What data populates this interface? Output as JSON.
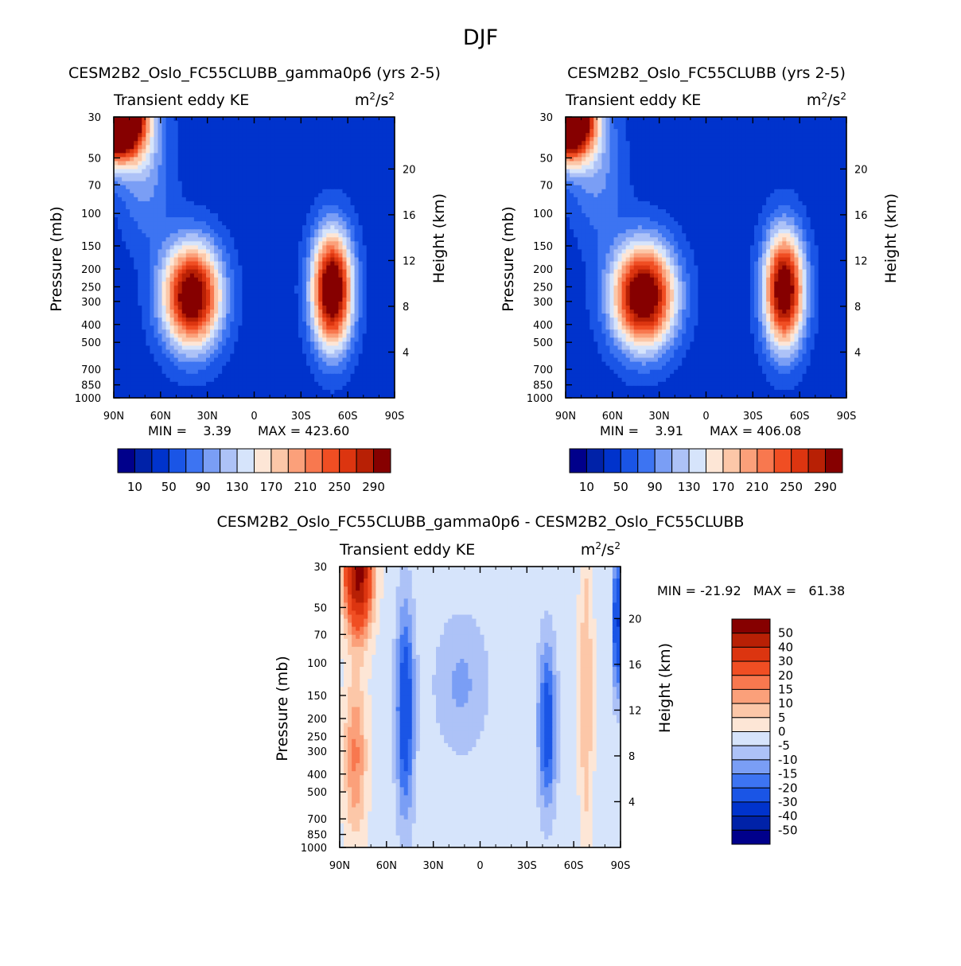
{
  "page_title": "DJF",
  "chart_data": [
    {
      "type": "heatmap",
      "title": "CESM2B2_Oslo_FC55CLUBB_gamma0p6 (yrs 2-5)",
      "subtitle_left": "Transient eddy KE",
      "units_base": "m",
      "units_exp": "2",
      "units_tail": "/s",
      "units_tail_exp": "2",
      "ylabel": "Pressure (mb)",
      "ylabel_right": "Height (km)",
      "x_ticks": [
        "90N",
        "60N",
        "30N",
        "0",
        "30S",
        "60S",
        "90S"
      ],
      "y_ticks": [
        "30",
        "50",
        "70",
        "100",
        "150",
        "200",
        "250",
        "300",
        "400",
        "500",
        "700",
        "850",
        "1000"
      ],
      "y_right_ticks": [
        "20",
        "16",
        "12",
        "8",
        "4"
      ],
      "min_text": "MIN =    3.39",
      "max_text": "MAX = 423.60",
      "colorbar_labels": [
        "10",
        "50",
        "90",
        "130",
        "170",
        "210",
        "250",
        "290"
      ],
      "levels": [
        10,
        30,
        50,
        70,
        90,
        110,
        130,
        150,
        170,
        190,
        210,
        230,
        250,
        270,
        290
      ],
      "blobs": [
        {
          "lat": 88,
          "lev": 30,
          "amp": 520,
          "slat": 12,
          "slev": 0.35
        },
        {
          "lat": 40,
          "lev": 280,
          "amp": 300,
          "slat": 13,
          "slev": 0.45
        },
        {
          "lat": -50,
          "lev": 260,
          "amp": 315,
          "slat": 9,
          "slev": 0.5
        },
        {
          "lat": 70,
          "lev": 60,
          "amp": 60,
          "slat": 12,
          "slev": 0.6
        }
      ],
      "background": 38
    },
    {
      "type": "heatmap",
      "title": "CESM2B2_Oslo_FC55CLUBB (yrs 2-5)",
      "subtitle_left": "Transient eddy KE",
      "units_base": "m",
      "units_exp": "2",
      "units_tail": "/s",
      "units_tail_exp": "2",
      "ylabel": "Pressure (mb)",
      "ylabel_right": "Height (km)",
      "x_ticks": [
        "90N",
        "60N",
        "30N",
        "0",
        "30S",
        "60S",
        "90S"
      ],
      "y_ticks": [
        "30",
        "50",
        "70",
        "100",
        "150",
        "200",
        "250",
        "300",
        "400",
        "500",
        "700",
        "850",
        "1000"
      ],
      "y_right_ticks": [
        "20",
        "16",
        "12",
        "8",
        "4"
      ],
      "min_text": "MIN =    3.91",
      "max_text": "MAX = 406.08",
      "colorbar_labels": [
        "10",
        "50",
        "90",
        "130",
        "170",
        "210",
        "250",
        "290"
      ],
      "levels": [
        10,
        30,
        50,
        70,
        90,
        110,
        130,
        150,
        170,
        190,
        210,
        230,
        250,
        270,
        290
      ],
      "blobs": [
        {
          "lat": 88,
          "lev": 30,
          "amp": 480,
          "slat": 11,
          "slev": 0.35
        },
        {
          "lat": 40,
          "lev": 280,
          "amp": 310,
          "slat": 14,
          "slev": 0.45
        },
        {
          "lat": -50,
          "lev": 260,
          "amp": 300,
          "slat": 9,
          "slev": 0.5
        },
        {
          "lat": 70,
          "lev": 60,
          "amp": 55,
          "slat": 12,
          "slev": 0.6
        }
      ],
      "background": 38
    },
    {
      "type": "heatmap",
      "title": "CESM2B2_Oslo_FC55CLUBB_gamma0p6 - CESM2B2_Oslo_FC55CLUBB",
      "subtitle_left": "Transient eddy KE",
      "units_base": "m",
      "units_exp": "2",
      "units_tail": "/s",
      "units_tail_exp": "2",
      "ylabel": "Pressure (mb)",
      "ylabel_right": "Height (km)",
      "x_ticks": [
        "90N",
        "60N",
        "30N",
        "0",
        "30S",
        "60S",
        "90S"
      ],
      "y_ticks": [
        "30",
        "50",
        "70",
        "100",
        "150",
        "200",
        "250",
        "300",
        "400",
        "500",
        "700",
        "850",
        "1000"
      ],
      "y_right_ticks": [
        "20",
        "16",
        "12",
        "8",
        "4"
      ],
      "min_max_text": "MIN = -21.92   MAX =   61.38",
      "colorbar_labels": [
        "50",
        "40",
        "30",
        "20",
        "15",
        "10",
        "5",
        "0",
        "-5",
        "-10",
        "-15",
        "-20",
        "-30",
        "-40",
        "-50"
      ],
      "levels": [
        -50,
        -40,
        -30,
        -20,
        -15,
        -10,
        -5,
        0,
        5,
        10,
        15,
        20,
        30,
        40,
        50
      ],
      "blobs": [
        {
          "lat": 78,
          "lev": 32,
          "amp": 58,
          "slat": 6,
          "slev": 0.5
        },
        {
          "lat": 80,
          "lev": 320,
          "amp": 18,
          "slat": 5,
          "slev": 0.7
        },
        {
          "lat": 48,
          "lev": 180,
          "amp": -26,
          "slat": 4,
          "slev": 0.9
        },
        {
          "lat": -43,
          "lev": 220,
          "amp": -24,
          "slat": 4,
          "slev": 0.7
        },
        {
          "lat": -68,
          "lev": 150,
          "amp": 12,
          "slat": 3,
          "slev": 1.4
        },
        {
          "lat": 12,
          "lev": 130,
          "amp": -9,
          "slat": 12,
          "slev": 0.6
        },
        {
          "lat": -88,
          "lev": 60,
          "amp": -30,
          "slat": 2,
          "slev": 0.6
        }
      ],
      "background": -2
    }
  ],
  "colors": {
    "seq": [
      "#00008b",
      "#0022a8",
      "#0033cc",
      "#1a55e6",
      "#3d74f2",
      "#7a9ef5",
      "#adc2f7",
      "#d6e4fb",
      "#fde6d6",
      "#fcc7a8",
      "#fba07a",
      "#f8784f",
      "#f04e23",
      "#dc3510",
      "#b82005",
      "#860000"
    ],
    "diff": [
      "#00008b",
      "#0022a8",
      "#0033cc",
      "#1a55e6",
      "#3d74f2",
      "#7a9ef5",
      "#adc2f7",
      "#d6e4fb",
      "#fde6d6",
      "#fcc7a8",
      "#fba07a",
      "#f8784f",
      "#f04e23",
      "#dc3510",
      "#b82005",
      "#860000"
    ]
  }
}
